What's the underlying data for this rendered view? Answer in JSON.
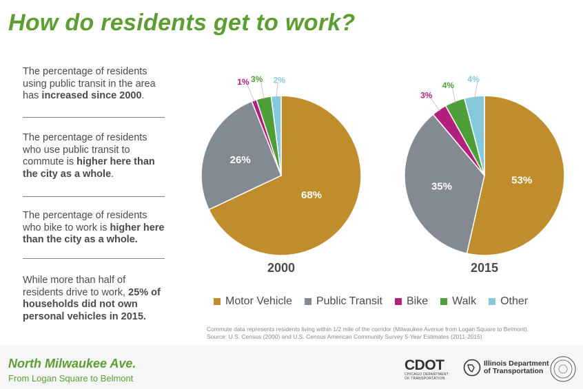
{
  "page": {
    "title": "How do residents get to work?"
  },
  "bullets": [
    {
      "pre": "The percentage of residents using public transit in the area has ",
      "bold": "increased since 2000",
      "post": "."
    },
    {
      "pre": "The percentage of residents who use public transit to commute is ",
      "bold": "higher here than the city as a whole",
      "post": "."
    },
    {
      "pre": "The percentage of residents who bike to work is ",
      "bold": "higher here than the city as a whole.",
      "post": ""
    },
    {
      "pre": "While more than half of residents drive to work, ",
      "bold": "25% of households did not own personal vehicles in 2015.",
      "post": ""
    }
  ],
  "colors": {
    "Motor Vehicle": "#bf8d2c",
    "Public Transit": "#848a92",
    "Bike": "#b21f7c",
    "Walk": "#4e9e3a",
    "Other": "#86c9dc"
  },
  "chart_data": [
    {
      "type": "pie",
      "title": "2000",
      "categories": [
        "Motor Vehicle",
        "Public Transit",
        "Bike",
        "Walk",
        "Other"
      ],
      "values": [
        68,
        26,
        1,
        3,
        2
      ],
      "labels": [
        "68%",
        "26%",
        "1%",
        "3%",
        "2%"
      ]
    },
    {
      "type": "pie",
      "title": "2015",
      "categories": [
        "Motor Vehicle",
        "Public Transit",
        "Bike",
        "Walk",
        "Other"
      ],
      "values": [
        53,
        35,
        3,
        4,
        4
      ],
      "labels": [
        "53%",
        "35%",
        "3%",
        "4%",
        "4%"
      ]
    }
  ],
  "legend": [
    "Motor Vehicle",
    "Public Transit",
    "Bike",
    "Walk",
    "Other"
  ],
  "note": {
    "line1": "Commute data represents residents living within 1/2 mile of the corridor (Milwaukee Avenue from Logan Square to Belmont).",
    "line2": "Source: U.S. Census (2000) and U.S. Census American Community Survey 5-Year Estimates (2011-2015)"
  },
  "footer": {
    "title": "North Milwaukee Ave.",
    "subtitle": "From Logan Square to Belmont",
    "cdot_main": "CDOT",
    "cdot_sub1": "CHICAGO DEPARTMENT",
    "cdot_sub2": "OF TRANSPORTATION",
    "idot_line1": "Illinois Department",
    "idot_line2": "of Transportation"
  }
}
